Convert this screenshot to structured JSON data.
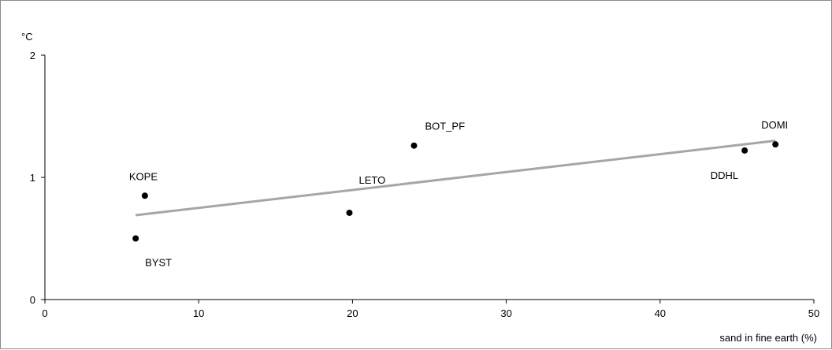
{
  "chart_data": {
    "type": "scatter",
    "title": "",
    "xlabel": "sand in fine earth (%)",
    "ylabel": "°C",
    "xlim": [
      0,
      50
    ],
    "ylim": [
      0,
      2
    ],
    "x_ticks": [
      0,
      10,
      20,
      30,
      40,
      50
    ],
    "y_ticks": [
      0,
      1,
      2
    ],
    "grid": false,
    "legend": "none",
    "points": [
      {
        "label": "KOPE",
        "x": 6.5,
        "y": 0.85
      },
      {
        "label": "BYST",
        "x": 5.9,
        "y": 0.5
      },
      {
        "label": "LETO",
        "x": 19.8,
        "y": 0.71
      },
      {
        "label": "BOT_PF",
        "x": 24.0,
        "y": 1.26
      },
      {
        "label": "DDHL",
        "x": 45.5,
        "y": 1.22
      },
      {
        "label": "DOMI",
        "x": 47.5,
        "y": 1.27
      }
    ],
    "trendline": {
      "x": [
        5.9,
        47.5
      ],
      "y": [
        0.69,
        1.3
      ]
    },
    "colors": {
      "points": "#000000",
      "trendline": "#a6a6a6",
      "axes": "#000000"
    }
  }
}
